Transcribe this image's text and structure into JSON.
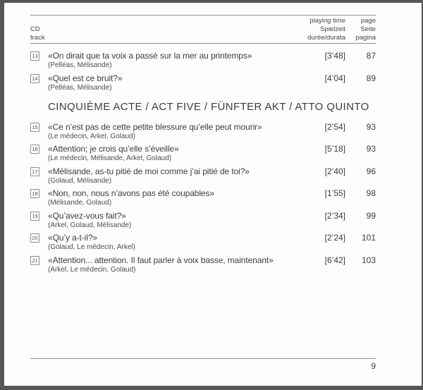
{
  "page": {
    "background": "#fdfdfd",
    "frame_color": "#565656",
    "rule_color": "#8f8f8f",
    "text_color": "#3c3c3c",
    "muted_text_color": "#4c4c4c"
  },
  "header": {
    "track_col": [
      "CD",
      "track"
    ],
    "time_col": [
      "playing time",
      "Spielzeit",
      "durée/durata"
    ],
    "page_col": [
      "page",
      "Seite",
      "pagina"
    ]
  },
  "sections": [
    {
      "heading": "",
      "tracks": [
        {
          "num": "13",
          "title": "«On dirait que ta voix a passé sur la mer au printemps»",
          "performers": "(Pelléas, Mélisande)",
          "time": "[3’48]",
          "page": "87"
        },
        {
          "num": "14",
          "title": "«Quel est ce bruit?»",
          "performers": "(Pelléas, Mélisande)",
          "time": "[4’04]",
          "page": "89"
        }
      ]
    },
    {
      "heading": "CINQUIÈME ACTE / ACT FIVE / FÜNFTER AKT / ATTO QUINTO",
      "tracks": [
        {
          "num": "15",
          "title": "«Ce n’est pas de cette petite blessure qu’elle peut mourir»",
          "performers": "(Le médecin, Arkel, Golaud)",
          "time": "[2’54]",
          "page": "93"
        },
        {
          "num": "16",
          "title": "«Attention; je crois qu’elle s’éveille»",
          "performers": "(Le médecin, Mélisande, Arkel, Golaud)",
          "time": "[5’18]",
          "page": "93"
        },
        {
          "num": "17",
          "title": "«Mélisande, as-tu pitié de moi comme j’ai pitié de toi?»",
          "performers": "(Golaud, Mélisande)",
          "time": "[2’40]",
          "page": "96"
        },
        {
          "num": "18",
          "title": "«Non, non, nous n’avons pas été coupables»",
          "performers": "(Mélisande, Golaud)",
          "time": "[1’55]",
          "page": "98"
        },
        {
          "num": "19",
          "title": "«Qu’avez-vous fait?»",
          "performers": "(Arkel, Golaud, Mélisande)",
          "time": "[2’34]",
          "page": "99"
        },
        {
          "num": "20",
          "title": "«Qu’y a-t-il?»",
          "performers": "(Golaud, Le médecin, Arkel)",
          "time": "[2’24]",
          "page": "101"
        },
        {
          "num": "21",
          "title": "«Attention... attention. Il faut parler à voix basse, maintenant»",
          "performers": "(Arkel, Le médecin, Golaud)",
          "time": "[6’42]",
          "page": "103"
        }
      ]
    }
  ],
  "footer": {
    "page_number": "9"
  }
}
